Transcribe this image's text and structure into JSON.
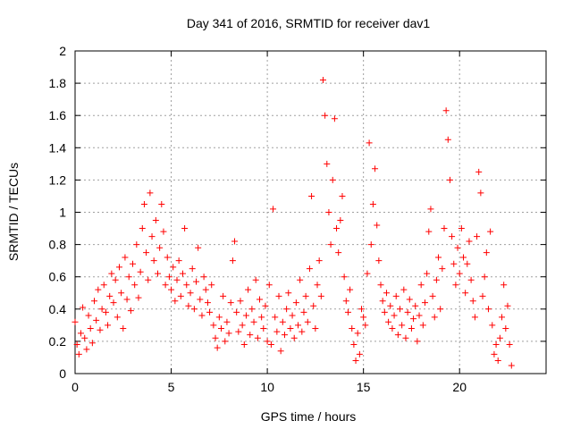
{
  "chart_data": {
    "type": "scatter",
    "title": "Day 341 of 2016, SRMTID for receiver dav1",
    "xlabel": "GPS time / hours",
    "ylabel": "SRMTID / TECUs",
    "xlim": [
      0,
      24.5
    ],
    "ylim": [
      0,
      2
    ],
    "x_ticks": [
      0,
      5,
      10,
      15,
      20
    ],
    "x_tick_labels": [
      "0",
      "5",
      "10",
      "15",
      "20"
    ],
    "y_ticks": [
      0,
      0.2,
      0.4,
      0.6,
      0.8,
      1,
      1.2,
      1.4,
      1.6,
      1.8,
      2
    ],
    "y_tick_labels": [
      "0",
      "0.2",
      "0.4",
      "0.6",
      "0.8",
      "1",
      "1.2",
      "1.4",
      "1.6",
      "1.8",
      "2"
    ],
    "grid": true,
    "marker": "+",
    "marker_color": "#ff0000",
    "series": [
      {
        "name": "SRMTID",
        "points": [
          [
            0.0,
            0.32
          ],
          [
            0.1,
            0.18
          ],
          [
            0.2,
            0.12
          ],
          [
            0.3,
            0.25
          ],
          [
            0.4,
            0.41
          ],
          [
            0.5,
            0.22
          ],
          [
            0.6,
            0.15
          ],
          [
            0.7,
            0.36
          ],
          [
            0.8,
            0.28
          ],
          [
            0.9,
            0.19
          ],
          [
            1.0,
            0.45
          ],
          [
            1.1,
            0.33
          ],
          [
            1.2,
            0.52
          ],
          [
            1.3,
            0.27
          ],
          [
            1.4,
            0.4
          ],
          [
            1.5,
            0.55
          ],
          [
            1.6,
            0.38
          ],
          [
            1.7,
            0.3
          ],
          [
            1.8,
            0.48
          ],
          [
            1.9,
            0.62
          ],
          [
            2.0,
            0.44
          ],
          [
            2.1,
            0.58
          ],
          [
            2.2,
            0.35
          ],
          [
            2.3,
            0.66
          ],
          [
            2.4,
            0.5
          ],
          [
            2.5,
            0.28
          ],
          [
            2.6,
            0.72
          ],
          [
            2.7,
            0.46
          ],
          [
            2.8,
            0.6
          ],
          [
            2.9,
            0.39
          ],
          [
            3.0,
            0.68
          ],
          [
            3.1,
            0.55
          ],
          [
            3.2,
            0.8
          ],
          [
            3.3,
            0.47
          ],
          [
            3.4,
            0.63
          ],
          [
            3.5,
            0.9
          ],
          [
            3.6,
            1.05
          ],
          [
            3.7,
            0.75
          ],
          [
            3.8,
            0.58
          ],
          [
            3.9,
            1.12
          ],
          [
            4.0,
            0.85
          ],
          [
            4.1,
            0.7
          ],
          [
            4.2,
            0.95
          ],
          [
            4.3,
            0.62
          ],
          [
            4.4,
            0.78
          ],
          [
            4.5,
            1.05
          ],
          [
            4.6,
            0.88
          ],
          [
            4.7,
            0.55
          ],
          [
            4.8,
            0.72
          ],
          [
            4.9,
            0.6
          ],
          [
            5.0,
            0.52
          ],
          [
            5.1,
            0.66
          ],
          [
            5.2,
            0.45
          ],
          [
            5.3,
            0.58
          ],
          [
            5.4,
            0.7
          ],
          [
            5.5,
            0.48
          ],
          [
            5.6,
            0.62
          ],
          [
            5.7,
            0.9
          ],
          [
            5.8,
            0.55
          ],
          [
            5.9,
            0.42
          ],
          [
            6.0,
            0.5
          ],
          [
            6.1,
            0.65
          ],
          [
            6.2,
            0.4
          ],
          [
            6.3,
            0.57
          ],
          [
            6.4,
            0.78
          ],
          [
            6.5,
            0.46
          ],
          [
            6.6,
            0.36
          ],
          [
            6.7,
            0.6
          ],
          [
            6.8,
            0.52
          ],
          [
            6.9,
            0.44
          ],
          [
            7.0,
            0.38
          ],
          [
            7.1,
            0.55
          ],
          [
            7.2,
            0.3
          ],
          [
            7.3,
            0.22
          ],
          [
            7.4,
            0.16
          ],
          [
            7.5,
            0.35
          ],
          [
            7.6,
            0.28
          ],
          [
            7.7,
            0.48
          ],
          [
            7.8,
            0.2
          ],
          [
            7.9,
            0.32
          ],
          [
            8.0,
            0.25
          ],
          [
            8.1,
            0.44
          ],
          [
            8.2,
            0.7
          ],
          [
            8.3,
            0.82
          ],
          [
            8.4,
            0.38
          ],
          [
            8.5,
            0.26
          ],
          [
            8.6,
            0.45
          ],
          [
            8.7,
            0.3
          ],
          [
            8.8,
            0.18
          ],
          [
            8.9,
            0.36
          ],
          [
            9.0,
            0.52
          ],
          [
            9.1,
            0.24
          ],
          [
            9.2,
            0.4
          ],
          [
            9.3,
            0.32
          ],
          [
            9.4,
            0.58
          ],
          [
            9.5,
            0.22
          ],
          [
            9.6,
            0.46
          ],
          [
            9.7,
            0.35
          ],
          [
            9.8,
            0.28
          ],
          [
            9.9,
            0.42
          ],
          [
            10.0,
            0.2
          ],
          [
            10.1,
            0.55
          ],
          [
            10.2,
            0.18
          ],
          [
            10.3,
            1.02
          ],
          [
            10.4,
            0.35
          ],
          [
            10.5,
            0.26
          ],
          [
            10.6,
            0.48
          ],
          [
            10.7,
            0.14
          ],
          [
            10.8,
            0.32
          ],
          [
            10.9,
            0.24
          ],
          [
            11.0,
            0.4
          ],
          [
            11.1,
            0.5
          ],
          [
            11.2,
            0.28
          ],
          [
            11.3,
            0.36
          ],
          [
            11.4,
            0.22
          ],
          [
            11.5,
            0.44
          ],
          [
            11.6,
            0.3
          ],
          [
            11.7,
            0.58
          ],
          [
            11.8,
            0.26
          ],
          [
            11.9,
            0.38
          ],
          [
            12.0,
            0.48
          ],
          [
            12.1,
            0.32
          ],
          [
            12.2,
            0.65
          ],
          [
            12.3,
            1.1
          ],
          [
            12.4,
            0.42
          ],
          [
            12.5,
            0.28
          ],
          [
            12.6,
            0.55
          ],
          [
            12.7,
            0.7
          ],
          [
            12.8,
            0.48
          ],
          [
            12.9,
            1.82
          ],
          [
            13.0,
            1.6
          ],
          [
            13.1,
            1.3
          ],
          [
            13.2,
            1.0
          ],
          [
            13.3,
            0.8
          ],
          [
            13.4,
            1.2
          ],
          [
            13.5,
            1.58
          ],
          [
            13.6,
            0.9
          ],
          [
            13.7,
            0.75
          ],
          [
            13.8,
            0.95
          ],
          [
            13.9,
            1.1
          ],
          [
            14.0,
            0.6
          ],
          [
            14.1,
            0.45
          ],
          [
            14.2,
            0.38
          ],
          [
            14.3,
            0.52
          ],
          [
            14.4,
            0.28
          ],
          [
            14.5,
            0.18
          ],
          [
            14.6,
            0.08
          ],
          [
            14.7,
            0.25
          ],
          [
            14.8,
            0.12
          ],
          [
            14.9,
            0.4
          ],
          [
            15.0,
            0.35
          ],
          [
            15.1,
            0.3
          ],
          [
            15.2,
            0.62
          ],
          [
            15.3,
            1.43
          ],
          [
            15.4,
            0.8
          ],
          [
            15.5,
            1.05
          ],
          [
            15.6,
            1.27
          ],
          [
            15.7,
            0.92
          ],
          [
            15.8,
            0.7
          ],
          [
            15.9,
            0.55
          ],
          [
            16.0,
            0.45
          ],
          [
            16.1,
            0.38
          ],
          [
            16.2,
            0.5
          ],
          [
            16.3,
            0.32
          ],
          [
            16.4,
            0.42
          ],
          [
            16.5,
            0.28
          ],
          [
            16.6,
            0.36
          ],
          [
            16.7,
            0.48
          ],
          [
            16.8,
            0.24
          ],
          [
            16.9,
            0.4
          ],
          [
            17.0,
            0.3
          ],
          [
            17.1,
            0.52
          ],
          [
            17.2,
            0.22
          ],
          [
            17.3,
            0.38
          ],
          [
            17.4,
            0.46
          ],
          [
            17.5,
            0.28
          ],
          [
            17.6,
            0.34
          ],
          [
            17.7,
            0.42
          ],
          [
            17.8,
            0.2
          ],
          [
            17.9,
            0.36
          ],
          [
            18.0,
            0.55
          ],
          [
            18.1,
            0.3
          ],
          [
            18.2,
            0.44
          ],
          [
            18.3,
            0.62
          ],
          [
            18.4,
            0.88
          ],
          [
            18.5,
            1.02
          ],
          [
            18.6,
            0.48
          ],
          [
            18.7,
            0.35
          ],
          [
            18.8,
            0.58
          ],
          [
            18.9,
            0.72
          ],
          [
            19.0,
            0.4
          ],
          [
            19.1,
            0.65
          ],
          [
            19.2,
            0.9
          ],
          [
            19.3,
            1.63
          ],
          [
            19.4,
            1.45
          ],
          [
            19.5,
            1.2
          ],
          [
            19.6,
            0.85
          ],
          [
            19.7,
            0.68
          ],
          [
            19.8,
            0.55
          ],
          [
            19.9,
            0.78
          ],
          [
            20.0,
            0.62
          ],
          [
            20.1,
            0.9
          ],
          [
            20.2,
            0.72
          ],
          [
            20.3,
            0.5
          ],
          [
            20.4,
            0.68
          ],
          [
            20.5,
            0.82
          ],
          [
            20.6,
            0.58
          ],
          [
            20.7,
            0.45
          ],
          [
            20.8,
            0.35
          ],
          [
            20.9,
            0.85
          ],
          [
            21.0,
            1.25
          ],
          [
            21.1,
            1.12
          ],
          [
            21.2,
            0.48
          ],
          [
            21.3,
            0.6
          ],
          [
            21.4,
            0.75
          ],
          [
            21.5,
            0.4
          ],
          [
            21.6,
            0.88
          ],
          [
            21.7,
            0.3
          ],
          [
            21.8,
            0.12
          ],
          [
            21.9,
            0.18
          ],
          [
            22.0,
            0.08
          ],
          [
            22.1,
            0.22
          ],
          [
            22.2,
            0.35
          ],
          [
            22.3,
            0.55
          ],
          [
            22.4,
            0.28
          ],
          [
            22.5,
            0.42
          ],
          [
            22.6,
            0.18
          ],
          [
            22.7,
            0.05
          ]
        ]
      }
    ]
  }
}
